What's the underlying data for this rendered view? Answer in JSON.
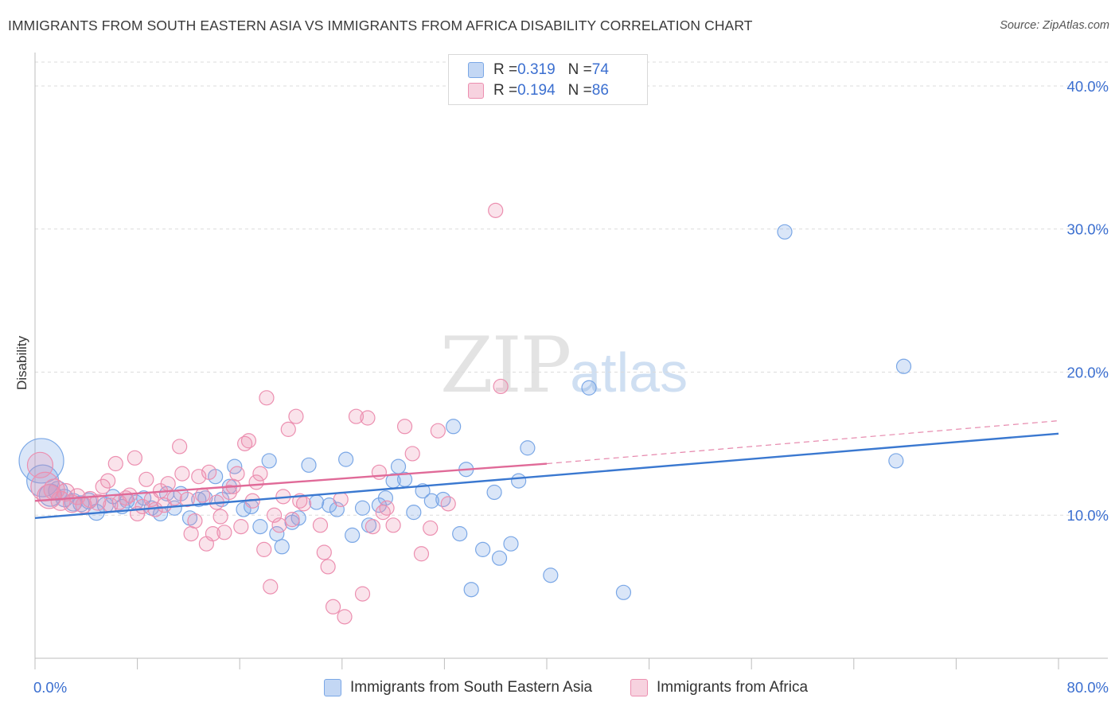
{
  "title": "IMMIGRANTS FROM SOUTH EASTERN ASIA VS IMMIGRANTS FROM AFRICA DISABILITY CORRELATION CHART",
  "source": "Source: ZipAtlas.com",
  "watermark": {
    "zip": "ZIP",
    "atlas": "atlas"
  },
  "colors": {
    "blue": "#7aa7e6",
    "blue_fill": "rgba(122,167,230,0.28)",
    "blue_line": "#3a78d0",
    "pink": "#ec8fb0",
    "pink_fill": "rgba(236,143,176,0.25)",
    "pink_line": "#e06a98",
    "axis_text": "#3b6fd0",
    "grid": "#dcdcdc"
  },
  "legend_top": [
    {
      "r_label": "R = ",
      "r_value": "0.319",
      "n_label": "N = ",
      "n_value": "74"
    },
    {
      "r_label": "R = ",
      "r_value": "0.194",
      "n_label": "N = ",
      "n_value": "86"
    }
  ],
  "legend_bottom": [
    "Immigrants from South Eastern Asia",
    "Immigrants from Africa"
  ],
  "chart_data": {
    "type": "scatter",
    "title": "IMMIGRANTS FROM SOUTH EASTERN ASIA VS IMMIGRANTS FROM AFRICA DISABILITY CORRELATION CHART",
    "xlabel": "",
    "ylabel": "Disability",
    "xlim": [
      0,
      80
    ],
    "ylim": [
      0,
      42
    ],
    "x_tick_labels": [
      {
        "value": 0,
        "label": "0.0%"
      },
      {
        "value": 80,
        "label": "80.0%"
      }
    ],
    "x_minor_ticks": [
      0,
      8,
      16,
      24,
      32,
      40,
      48,
      56,
      64,
      72,
      80
    ],
    "y_ticks": [
      {
        "value": 10,
        "label": "10.0%"
      },
      {
        "value": 20,
        "label": "20.0%"
      },
      {
        "value": 30,
        "label": "30.0%"
      },
      {
        "value": 40,
        "label": "40.0%"
      }
    ],
    "grid": true,
    "legend_position": "top-center",
    "series": [
      {
        "name": "Immigrants from South Eastern Asia",
        "R": 0.319,
        "N": 74,
        "trend": {
          "x0": 0,
          "y0": 9.8,
          "x1": 80,
          "y1": 15.7
        },
        "points": [
          [
            0.5,
            13.8,
            28
          ],
          [
            0.6,
            12.4,
            20
          ],
          [
            1.2,
            11.4,
            14
          ],
          [
            1.8,
            11.7,
            12
          ],
          [
            2.3,
            11.2,
            11
          ],
          [
            3.0,
            10.9,
            11
          ],
          [
            3.6,
            10.8,
            10
          ],
          [
            4.2,
            11.0,
            10
          ],
          [
            4.8,
            10.2,
            10
          ],
          [
            5.5,
            10.7,
            10
          ],
          [
            6.1,
            11.3,
            9
          ],
          [
            6.8,
            10.6,
            9
          ],
          [
            7.2,
            11.0,
            9
          ],
          [
            7.9,
            10.9,
            9
          ],
          [
            8.5,
            11.2,
            9
          ],
          [
            9.1,
            10.5,
            9
          ],
          [
            9.8,
            10.1,
            9
          ],
          [
            10.3,
            11.5,
            9
          ],
          [
            10.9,
            10.5,
            9
          ],
          [
            11.4,
            11.5,
            9
          ],
          [
            12.1,
            9.8,
            9
          ],
          [
            12.8,
            11.1,
            9
          ],
          [
            13.3,
            11.2,
            9
          ],
          [
            14.1,
            12.7,
            9
          ],
          [
            14.6,
            11.1,
            9
          ],
          [
            15.2,
            12.0,
            9
          ],
          [
            15.6,
            13.4,
            9
          ],
          [
            16.3,
            10.4,
            9
          ],
          [
            16.9,
            10.6,
            9
          ],
          [
            17.6,
            9.2,
            9
          ],
          [
            18.3,
            13.8,
            9
          ],
          [
            18.9,
            8.7,
            9
          ],
          [
            19.3,
            7.8,
            9
          ],
          [
            20.1,
            9.5,
            9
          ],
          [
            20.6,
            9.8,
            9
          ],
          [
            21.4,
            13.5,
            9
          ],
          [
            22.0,
            10.9,
            9
          ],
          [
            23.0,
            10.7,
            9
          ],
          [
            23.6,
            10.4,
            9
          ],
          [
            24.3,
            13.9,
            9
          ],
          [
            24.8,
            8.6,
            9
          ],
          [
            25.6,
            10.5,
            9
          ],
          [
            26.1,
            9.3,
            9
          ],
          [
            26.9,
            10.7,
            9
          ],
          [
            27.4,
            11.2,
            9
          ],
          [
            28.0,
            12.4,
            9
          ],
          [
            28.4,
            13.4,
            9
          ],
          [
            28.9,
            12.5,
            9
          ],
          [
            29.6,
            10.2,
            9
          ],
          [
            30.3,
            11.7,
            9
          ],
          [
            31.0,
            11.0,
            9
          ],
          [
            31.9,
            11.1,
            9
          ],
          [
            32.7,
            16.2,
            9
          ],
          [
            33.2,
            8.7,
            9
          ],
          [
            33.7,
            13.2,
            9
          ],
          [
            34.1,
            4.8,
            9
          ],
          [
            35.0,
            7.6,
            9
          ],
          [
            35.9,
            11.6,
            9
          ],
          [
            36.3,
            7.0,
            9
          ],
          [
            37.2,
            8.0,
            9
          ],
          [
            37.8,
            12.4,
            9
          ],
          [
            38.5,
            14.7,
            9
          ],
          [
            40.3,
            5.8,
            9
          ],
          [
            43.3,
            18.9,
            9
          ],
          [
            46.0,
            4.6,
            9
          ],
          [
            58.6,
            29.8,
            9
          ],
          [
            67.3,
            13.8,
            9
          ],
          [
            67.9,
            20.4,
            9
          ]
        ]
      },
      {
        "name": "Immigrants from Africa",
        "R": 0.194,
        "N": 86,
        "trend": {
          "x0": 0,
          "y0": 11.0,
          "x1": 40,
          "y1": 13.6
        },
        "trend_dashed": {
          "x0": 40,
          "y0": 13.6,
          "x1": 80,
          "y1": 16.6
        },
        "points": [
          [
            0.4,
            13.5,
            16
          ],
          [
            0.8,
            12.0,
            18
          ],
          [
            1.1,
            11.3,
            15
          ],
          [
            1.5,
            11.8,
            13
          ],
          [
            2.0,
            11.0,
            12
          ],
          [
            2.4,
            11.6,
            11
          ],
          [
            2.9,
            10.8,
            11
          ],
          [
            3.3,
            11.3,
            10
          ],
          [
            3.8,
            10.7,
            10
          ],
          [
            4.3,
            11.1,
            10
          ],
          [
            4.9,
            10.9,
            10
          ],
          [
            5.3,
            12.0,
            9
          ],
          [
            5.7,
            12.4,
            9
          ],
          [
            5.9,
            10.7,
            9
          ],
          [
            6.3,
            13.6,
            9
          ],
          [
            6.6,
            10.9,
            9
          ],
          [
            7.1,
            11.2,
            9
          ],
          [
            7.4,
            11.4,
            9
          ],
          [
            7.8,
            14.0,
            9
          ],
          [
            8.0,
            10.1,
            9
          ],
          [
            8.4,
            10.6,
            9
          ],
          [
            8.7,
            12.5,
            9
          ],
          [
            9.1,
            11.1,
            9
          ],
          [
            9.4,
            10.4,
            9
          ],
          [
            9.8,
            11.7,
            9
          ],
          [
            10.1,
            10.7,
            9
          ],
          [
            10.4,
            12.2,
            9
          ],
          [
            10.9,
            11.2,
            9
          ],
          [
            11.3,
            14.8,
            9
          ],
          [
            11.5,
            12.9,
            9
          ],
          [
            11.9,
            11.1,
            9
          ],
          [
            12.2,
            8.7,
            9
          ],
          [
            12.5,
            9.6,
            9
          ],
          [
            12.8,
            12.7,
            9
          ],
          [
            13.1,
            11.4,
            9
          ],
          [
            13.4,
            8.0,
            9
          ],
          [
            13.6,
            13.0,
            9
          ],
          [
            13.9,
            8.7,
            9
          ],
          [
            14.2,
            10.9,
            9
          ],
          [
            14.5,
            9.9,
            9
          ],
          [
            14.8,
            8.8,
            9
          ],
          [
            15.2,
            11.6,
            9
          ],
          [
            15.5,
            12.0,
            9
          ],
          [
            15.8,
            12.9,
            9
          ],
          [
            16.1,
            9.2,
            9
          ],
          [
            16.4,
            15.0,
            9
          ],
          [
            16.7,
            15.2,
            9
          ],
          [
            17.0,
            11.0,
            9
          ],
          [
            17.3,
            12.3,
            9
          ],
          [
            17.6,
            12.9,
            9
          ],
          [
            17.9,
            7.6,
            9
          ],
          [
            18.1,
            18.2,
            9
          ],
          [
            18.4,
            5.0,
            9
          ],
          [
            18.7,
            10.0,
            9
          ],
          [
            19.1,
            9.3,
            9
          ],
          [
            19.4,
            11.3,
            9
          ],
          [
            19.8,
            16.0,
            9
          ],
          [
            20.1,
            9.7,
            9
          ],
          [
            20.4,
            16.9,
            9
          ],
          [
            20.7,
            11.0,
            9
          ],
          [
            21.0,
            10.8,
            9
          ],
          [
            22.3,
            9.3,
            9
          ],
          [
            22.6,
            7.4,
            9
          ],
          [
            22.9,
            6.4,
            9
          ],
          [
            23.3,
            3.6,
            9
          ],
          [
            23.9,
            11.1,
            9
          ],
          [
            24.2,
            2.9,
            9
          ],
          [
            25.1,
            16.9,
            9
          ],
          [
            25.6,
            4.5,
            9
          ],
          [
            26.0,
            16.8,
            9
          ],
          [
            26.4,
            9.2,
            9
          ],
          [
            26.9,
            13.0,
            9
          ],
          [
            27.2,
            10.2,
            9
          ],
          [
            27.5,
            10.5,
            9
          ],
          [
            28.0,
            9.3,
            9
          ],
          [
            28.9,
            16.2,
            9
          ],
          [
            29.5,
            14.3,
            9
          ],
          [
            30.2,
            7.3,
            9
          ],
          [
            30.9,
            9.1,
            9
          ],
          [
            31.5,
            15.9,
            9
          ],
          [
            32.3,
            10.8,
            9
          ],
          [
            36.0,
            31.3,
            9
          ],
          [
            36.4,
            19.0,
            9
          ]
        ]
      }
    ]
  }
}
